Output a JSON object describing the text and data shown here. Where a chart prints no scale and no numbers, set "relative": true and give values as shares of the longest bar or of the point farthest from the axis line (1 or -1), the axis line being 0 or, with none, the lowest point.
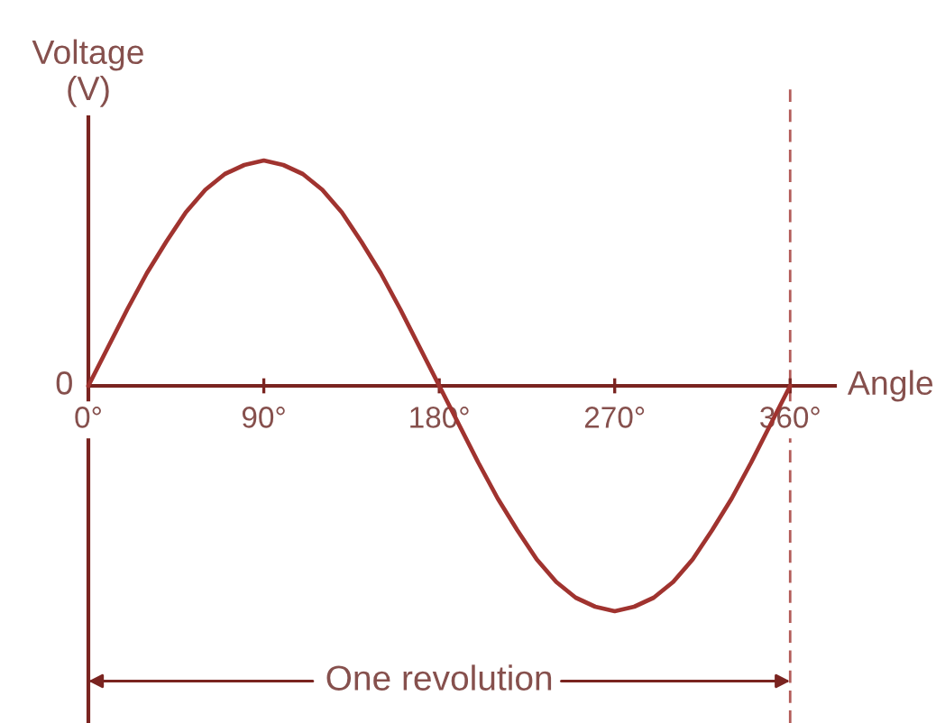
{
  "chart_data": {
    "type": "line",
    "relative": true,
    "xlabel": "Angle",
    "ylabel": "Voltage\n(V)",
    "x": [
      0,
      10,
      20,
      30,
      40,
      50,
      60,
      70,
      80,
      90,
      100,
      110,
      120,
      130,
      140,
      150,
      160,
      170,
      180,
      190,
      200,
      210,
      220,
      230,
      240,
      250,
      260,
      270,
      280,
      290,
      300,
      310,
      320,
      330,
      340,
      350,
      360
    ],
    "series": [
      {
        "color": "#a0332f",
        "values": [
          0,
          0.17,
          0.34,
          0.5,
          0.64,
          0.77,
          0.87,
          0.94,
          0.98,
          1,
          0.98,
          0.94,
          0.87,
          0.77,
          0.64,
          0.5,
          0.34,
          0.17,
          0,
          -0.17,
          -0.34,
          -0.5,
          -0.64,
          -0.77,
          -0.87,
          -0.94,
          -0.98,
          -1,
          -0.98,
          -0.94,
          -0.87,
          -0.77,
          -0.64,
          -0.5,
          -0.34,
          -0.17,
          0
        ]
      }
    ],
    "xlim": [
      0,
      383
    ],
    "xticks": [
      {
        "value": 0,
        "label": "0°"
      },
      {
        "value": 90,
        "label": "90°"
      },
      {
        "value": 180,
        "label": "180°"
      },
      {
        "value": 270,
        "label": "270°"
      },
      {
        "value": 360,
        "label": "360°"
      }
    ],
    "ref_lines": [
      {
        "axis": "x",
        "value": 360,
        "line_style": "dashed",
        "color": "#a0332f"
      }
    ],
    "annotations": [
      {
        "text": "0",
        "x": 0,
        "y": 0
      },
      "One revolution"
    ],
    "grid": false,
    "legend": false,
    "marker": "none",
    "line_style": "solid"
  }
}
